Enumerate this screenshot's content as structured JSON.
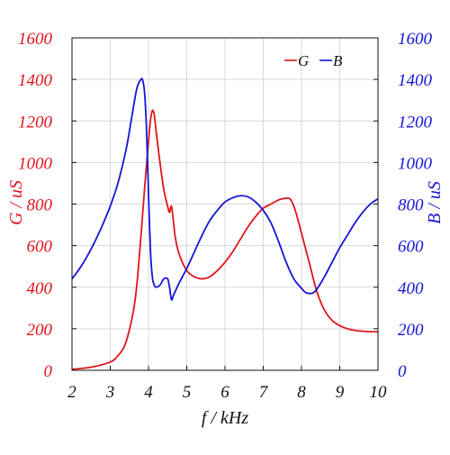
{
  "chart_data": {
    "type": "line",
    "xlabel": "f / kHz",
    "ylabel_left": "G / uS",
    "ylabel_right": "B / uS",
    "xlim": [
      2,
      10
    ],
    "ylim": [
      0,
      1600
    ],
    "y2lim": [
      0,
      1600
    ],
    "x_ticks": [
      "2",
      "3",
      "4",
      "5",
      "6",
      "7",
      "8",
      "9",
      "10"
    ],
    "y_ticks": [
      "0",
      "200",
      "400",
      "600",
      "800",
      "1000",
      "1200",
      "1400",
      "1600"
    ],
    "y2_ticks": [
      "0",
      "200",
      "400",
      "600",
      "800",
      "1000",
      "1200",
      "1400",
      "1600"
    ],
    "grid": true,
    "legend_position": "top-right",
    "colors": {
      "G": "#e0141b",
      "B": "#1414d6",
      "axis": "#111111",
      "grid": "#d9d9d9"
    },
    "series": [
      {
        "name": "G",
        "axis": "left",
        "x": [
          2.0,
          2.5,
          3.0,
          3.2,
          3.4,
          3.6,
          3.7,
          3.8,
          3.9,
          4.0,
          4.05,
          4.1,
          4.15,
          4.2,
          4.3,
          4.4,
          4.5,
          4.55,
          4.6,
          4.65,
          4.7,
          4.8,
          5.0,
          5.2,
          5.4,
          5.6,
          5.8,
          6.0,
          6.2,
          6.4,
          6.6,
          6.8,
          7.0,
          7.2,
          7.4,
          7.5,
          7.6,
          7.7,
          7.8,
          7.9,
          8.0,
          8.2,
          8.4,
          8.6,
          8.8,
          9.0,
          9.2,
          9.4,
          9.6,
          9.8,
          10.0
        ],
        "y": [
          5,
          15,
          40,
          70,
          130,
          280,
          420,
          640,
          880,
          1100,
          1200,
          1250,
          1230,
          1150,
          1000,
          870,
          790,
          760,
          790,
          720,
          640,
          560,
          480,
          450,
          440,
          450,
          480,
          520,
          570,
          630,
          690,
          740,
          780,
          800,
          820,
          825,
          828,
          825,
          790,
          730,
          660,
          520,
          380,
          290,
          240,
          215,
          200,
          192,
          188,
          186,
          185
        ]
      },
      {
        "name": "B",
        "axis": "right",
        "x": [
          2.0,
          2.2,
          2.4,
          2.6,
          2.8,
          3.0,
          3.2,
          3.4,
          3.5,
          3.6,
          3.7,
          3.8,
          3.85,
          3.9,
          3.95,
          4.0,
          4.05,
          4.1,
          4.15,
          4.2,
          4.3,
          4.4,
          4.5,
          4.55,
          4.6,
          4.65,
          4.7,
          4.8,
          5.0,
          5.2,
          5.4,
          5.6,
          5.8,
          6.0,
          6.2,
          6.4,
          6.6,
          6.8,
          7.0,
          7.2,
          7.4,
          7.6,
          7.8,
          8.0,
          8.1,
          8.2,
          8.3,
          8.4,
          8.6,
          8.8,
          9.0,
          9.2,
          9.4,
          9.6,
          9.8,
          10.0
        ],
        "y": [
          440,
          490,
          550,
          620,
          700,
          790,
          900,
          1050,
          1150,
          1260,
          1360,
          1400,
          1395,
          1330,
          1150,
          850,
          580,
          450,
          410,
          400,
          410,
          440,
          440,
          400,
          340,
          360,
          380,
          420,
          490,
          570,
          650,
          720,
          770,
          810,
          830,
          840,
          835,
          810,
          770,
          710,
          620,
          520,
          440,
          395,
          375,
          370,
          372,
          390,
          450,
          520,
          590,
          650,
          710,
          760,
          800,
          825
        ]
      }
    ]
  }
}
